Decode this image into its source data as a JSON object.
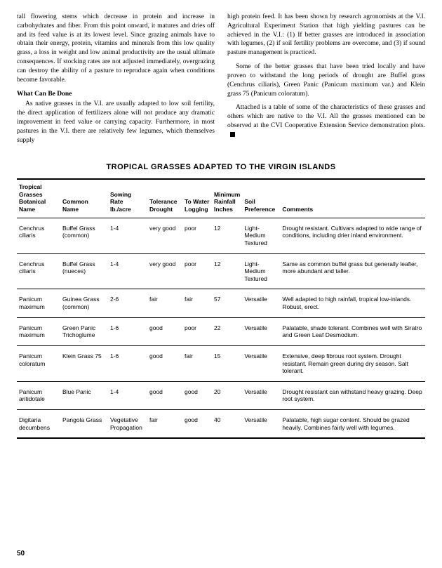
{
  "text": {
    "col1_p1": "tall flowering stems which decrease in protein and increase in carbohydrates and fiber. From this point onward, it matures and dries off and its feed value is at its lowest level. Since grazing animals have to obtain their energy, protein, vitamins and minerals from this low quality grass, a loss in weight and low animal productivity are the usual ultimate consequences. If stocking rates are not adjusted immediately, overgrazing can destroy the ability of a pasture to reproduce again when conditions become favorable.",
    "col1_subhead": "What Can Be Done",
    "col1_p2": "As native grasses in the V.I. are usually adapted to low soil fertility, the direct application of fertilizers alone will not produce any dramatic improvement in feed value or carrying capacity. Furthermore, in most pastures in the V.I. there are relatively few legumes, which themselves supply",
    "col2_p1": "high protein feed. It has been shown by research agronomists at the V.I. Agricultural Experiment Station that high yielding pastures can be achieved in the V.I.: (1) If better grasses are introduced in association with legumes, (2) if soil fertility problems are overcome, and (3) if sound pasture management is practiced.",
    "col2_p2": "Some of the better grasses that have been tried locally and have proven to withstand the long periods of drought are Buffel grass (Cenchrus ciliaris), Green Panic (Panicum maximum var.) and Klein grass 75 (Panicum coloratum).",
    "col2_p3": "Attached is a table of some of the characteristics of these grasses and others which are native to the V.I. All the grasses mentioned can be observed at the CVI Cooperative Extension Service demonstration plots."
  },
  "table_title": "TROPICAL GRASSES ADAPTED TO THE VIRGIN ISLANDS",
  "table": {
    "headers": {
      "botanical": "Tropical Grasses Botanical Name",
      "common": "Common Name",
      "sowing": "Sowing Rate lb./acre",
      "drought": "Tolerance Drought",
      "water": "To Water Logging",
      "rainfall": "Minimum Rainfall Inches",
      "soil": "Soil Preference",
      "comments": "Comments"
    },
    "rows": [
      {
        "botanical": "Cenchrus ciliaris",
        "common": "Buffel Grass (common)",
        "sowing": "1-4",
        "drought": "very good",
        "water": "poor",
        "rainfall": "12",
        "soil": "Light-Medium Textured",
        "comments": "Drought resistant. Cultivars adapted to wide range of conditions, including drier inland environment."
      },
      {
        "botanical": "Cenchrus ciliaris",
        "common": "Buffel Grass (nueces)",
        "sowing": "1-4",
        "drought": "very good",
        "water": "poor",
        "rainfall": "12",
        "soil": "Light-Medium Textured",
        "comments": "Same as common buffel grass but generally leafier, more abundant and taller."
      },
      {
        "botanical": "Panicum maximum",
        "common": "Guinea Grass (common)",
        "sowing": "2-6",
        "drought": "fair",
        "water": "fair",
        "rainfall": "57",
        "soil": "Versatile",
        "comments": "Well adapted to high rainfall, tropical low-inlands. Robust, erect."
      },
      {
        "botanical": "Panicum maximum",
        "common": "Green Panic Trichoglume",
        "sowing": "1-6",
        "drought": "good",
        "water": "poor",
        "rainfall": "22",
        "soil": "Versatile",
        "comments": "Palatable, shade tolerant. Combines well with Siratro and Green Leaf Desmodium."
      },
      {
        "botanical": "Panicum coloratum",
        "common": "Klein Grass 75",
        "sowing": "1-6",
        "drought": "good",
        "water": "fair",
        "rainfall": "15",
        "soil": "Versatile",
        "comments": "Extensive, deep fibrous root system. Drought resistant. Remain green during dry season. Salt tolerant."
      },
      {
        "botanical": "Panicum antidotale",
        "common": "Blue Panic",
        "sowing": "1-4",
        "drought": "good",
        "water": "good",
        "rainfall": "20",
        "soil": "Versatile",
        "comments": "Drought resistant can withstand heavy grazing. Deep root system."
      },
      {
        "botanical": "Digitaria decumbens",
        "common": "Pangola Grass",
        "sowing": "Vegetative Propagation",
        "drought": "fair",
        "water": "good",
        "rainfall": "40",
        "soil": "Versatile",
        "comments": "Palatable, high sugar content. Should be grazed heavily. Combines fairly well with legumes."
      }
    ]
  },
  "page_number": "50"
}
